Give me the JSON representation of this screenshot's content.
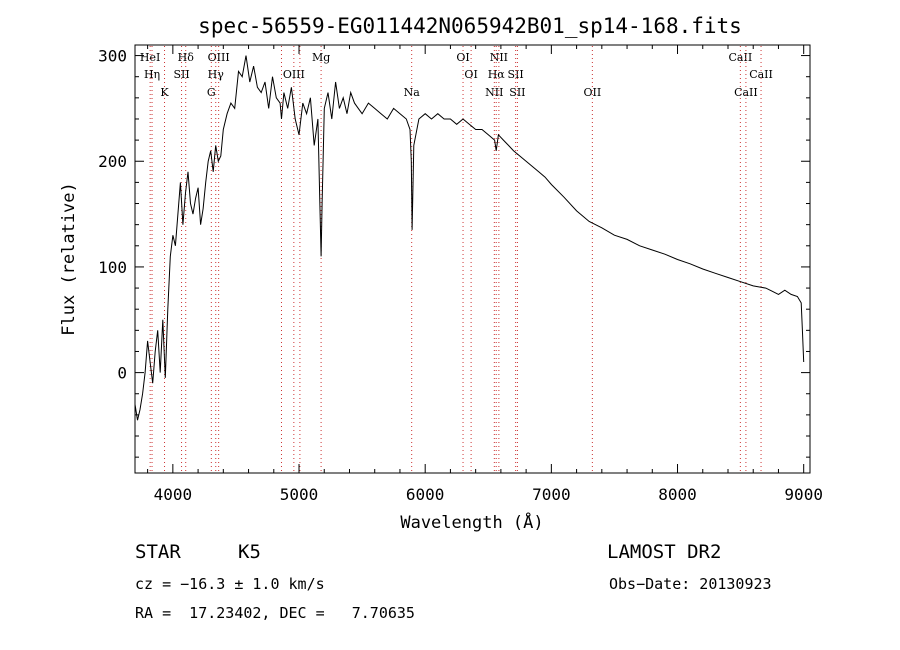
{
  "chart_data": {
    "type": "line",
    "title": "spec-56559-EG011442N065942B01_sp14-168.fits",
    "xlabel": "Wavelength (Å)",
    "ylabel": "Flux (relative)",
    "xlim": [
      3700,
      9050
    ],
    "ylim": [
      -95,
      310
    ],
    "xticks": [
      4000,
      5000,
      6000,
      7000,
      8000,
      9000
    ],
    "yticks": [
      0,
      100,
      200,
      300
    ],
    "series": [
      {
        "x": [
          3700,
          3720,
          3740,
          3760,
          3780,
          3800,
          3820,
          3840,
          3860,
          3880,
          3900,
          3920,
          3940,
          3960,
          3980,
          4000,
          4020,
          4040,
          4060,
          4080,
          4100,
          4120,
          4140,
          4160,
          4180,
          4200,
          4220,
          4240,
          4260,
          4280,
          4300,
          4320,
          4340,
          4360,
          4380,
          4400,
          4430,
          4460,
          4490,
          4520,
          4550,
          4580,
          4610,
          4640,
          4670,
          4700,
          4730,
          4760,
          4790,
          4820,
          4850,
          4861,
          4880,
          4910,
          4940,
          4970,
          5000,
          5030,
          5060,
          5090,
          5120,
          5150,
          5167,
          5175,
          5183,
          5200,
          5230,
          5260,
          5290,
          5320,
          5350,
          5380,
          5410,
          5440,
          5470,
          5500,
          5550,
          5600,
          5650,
          5700,
          5750,
          5800,
          5850,
          5880,
          5890,
          5896,
          5910,
          5950,
          6000,
          6050,
          6100,
          6150,
          6200,
          6250,
          6300,
          6350,
          6400,
          6450,
          6500,
          6550,
          6563,
          6580,
          6620,
          6660,
          6700,
          6750,
          6800,
          6850,
          6900,
          6950,
          7000,
          7100,
          7200,
          7300,
          7400,
          7500,
          7600,
          7700,
          7800,
          7900,
          8000,
          8100,
          8200,
          8300,
          8400,
          8500,
          8600,
          8700,
          8750,
          8800,
          8850,
          8900,
          8950,
          8980,
          8990,
          9000
        ],
        "y": [
          -30,
          -45,
          -35,
          -20,
          0,
          30,
          10,
          -10,
          20,
          40,
          0,
          50,
          -5,
          60,
          110,
          130,
          120,
          150,
          180,
          140,
          170,
          190,
          160,
          150,
          165,
          175,
          140,
          155,
          180,
          200,
          210,
          190,
          215,
          200,
          205,
          230,
          245,
          255,
          250,
          285,
          280,
          300,
          275,
          290,
          270,
          265,
          275,
          250,
          280,
          260,
          255,
          240,
          265,
          250,
          270,
          240,
          225,
          255,
          245,
          260,
          215,
          240,
          150,
          110,
          160,
          250,
          265,
          240,
          275,
          250,
          260,
          245,
          265,
          255,
          250,
          245,
          255,
          250,
          245,
          240,
          250,
          245,
          240,
          230,
          200,
          135,
          215,
          240,
          245,
          240,
          245,
          240,
          240,
          235,
          240,
          235,
          230,
          230,
          225,
          220,
          210,
          225,
          220,
          215,
          210,
          205,
          200,
          195,
          190,
          185,
          178,
          166,
          153,
          143,
          137,
          130,
          126,
          120,
          116,
          112,
          107,
          103,
          98,
          94,
          90,
          86,
          82,
          80,
          77,
          74,
          78,
          74,
          72,
          66,
          40,
          10
        ]
      }
    ],
    "line_markers": [
      {
        "label": "HeI",
        "x": 3820,
        "row": 0
      },
      {
        "label": "Hη",
        "x": 3835,
        "row": 1
      },
      {
        "label": "K",
        "x": 3934,
        "row": 2
      },
      {
        "label": "Hδ",
        "x": 4102,
        "row": 0
      },
      {
        "label": "SII",
        "x": 4069,
        "row": 1
      },
      {
        "label": "OIII",
        "x": 4363,
        "row": 0
      },
      {
        "label": "Hγ",
        "x": 4340,
        "row": 1
      },
      {
        "label": "G",
        "x": 4305,
        "row": 2
      },
      {
        "label": "OIII",
        "x": 4959,
        "row": 1
      },
      {
        "label": "",
        "x": 4861,
        "row": -1
      },
      {
        "label": "",
        "x": 5007,
        "row": -1
      },
      {
        "label": "Mg",
        "x": 5175,
        "row": 0
      },
      {
        "label": "Na",
        "x": 5893,
        "row": 2
      },
      {
        "label": "OI",
        "x": 6300,
        "row": 0
      },
      {
        "label": "OI",
        "x": 6364,
        "row": 1
      },
      {
        "label": "NII",
        "x": 6584,
        "row": 0
      },
      {
        "label": "Hα",
        "x": 6563,
        "row": 1
      },
      {
        "label": "SII",
        "x": 6717,
        "row": 1
      },
      {
        "label": "NII",
        "x": 6548,
        "row": 2
      },
      {
        "label": "SII",
        "x": 6731,
        "row": 2
      },
      {
        "label": "OII",
        "x": 7325,
        "row": 2
      },
      {
        "label": "CaII",
        "x": 8498,
        "row": 0
      },
      {
        "label": "CaII",
        "x": 8662,
        "row": 1
      },
      {
        "label": "CaII",
        "x": 8542,
        "row": 2
      }
    ],
    "grid": false
  },
  "info": {
    "object_class": "STAR",
    "subclass": "K5",
    "survey": "LAMOST DR2",
    "cz": "cz = −16.3 ± 1.0 km/s",
    "obs_date": "Obs−Date: 20130923",
    "coords": "RA =  17.23402, DEC =   7.70635"
  },
  "colors": {
    "line": "#000000",
    "marker": "#cc3333",
    "background": "#ffffff"
  }
}
